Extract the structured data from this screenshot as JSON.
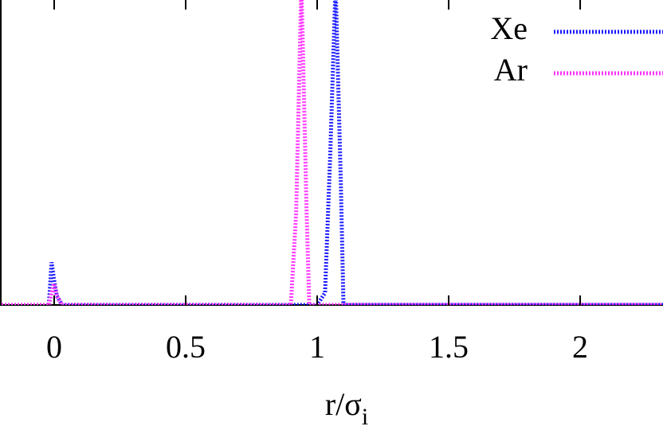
{
  "chart_data": {
    "type": "line",
    "xlabel": "r/σ",
    "xlabel_subscript": "i",
    "xlim": [
      -0.206,
      2.315
    ],
    "ylim": [
      0,
      10
    ],
    "xticks": [
      0,
      0.5,
      1,
      1.5,
      2
    ],
    "legend": "top-right",
    "series": [
      {
        "name": "Xe",
        "color": "#1a1aff",
        "x": [
          -0.2,
          -0.02,
          -0.01,
          0.0,
          0.01,
          0.03,
          0.1,
          0.95,
          1.0,
          1.03,
          1.05,
          1.07,
          1.09,
          1.1,
          1.15,
          2.315
        ],
        "values": [
          0,
          0,
          1.4,
          0.8,
          0.3,
          0,
          0,
          0,
          0,
          0.4,
          5,
          10.5,
          4,
          0,
          0,
          0
        ]
      },
      {
        "name": "Ar",
        "color": "#ff33ff",
        "x": [
          -0.2,
          -0.02,
          -0.01,
          0.0,
          0.01,
          0.03,
          0.1,
          0.85,
          0.9,
          0.92,
          0.94,
          0.96,
          0.97,
          1.0,
          2.315
        ],
        "values": [
          0,
          0,
          0.4,
          0.7,
          0.3,
          0,
          0,
          0,
          0,
          3,
          10.5,
          3,
          0,
          0,
          0
        ]
      }
    ]
  }
}
